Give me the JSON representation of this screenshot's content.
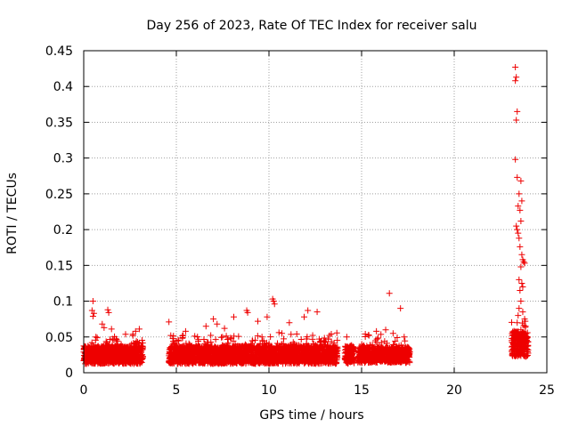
{
  "chart_data": {
    "type": "scatter",
    "title": "Day 256 of 2023, Rate Of TEC Index for receiver salu",
    "xlabel": "GPS time / hours",
    "ylabel": "ROTI / TECUs",
    "xlim": [
      0,
      25
    ],
    "ylim": [
      0,
      0.45
    ],
    "xticks": [
      "0",
      "5",
      "10",
      "15",
      "20",
      "25"
    ],
    "yticks": [
      "0",
      "0.05",
      "0.1",
      "0.15",
      "0.2",
      "0.25",
      "0.3",
      "0.35",
      "0.4",
      "0.45"
    ],
    "grid": true,
    "marker": "plus",
    "color": "#ee0000",
    "segments": [
      {
        "start": 0.0,
        "end": 3.2,
        "base": 0.025,
        "spread": 0.025
      },
      {
        "start": 4.6,
        "end": 13.7,
        "base": 0.025,
        "spread": 0.025
      },
      {
        "start": 14.1,
        "end": 14.6,
        "base": 0.025,
        "spread": 0.025
      },
      {
        "start": 14.8,
        "end": 17.6,
        "base": 0.025,
        "spread": 0.022
      },
      {
        "start": 23.1,
        "end": 24.0,
        "base": 0.04,
        "spread": 0.035
      }
    ],
    "points": [
      [
        0.5,
        0.1
      ],
      [
        0.45,
        0.087
      ],
      [
        0.55,
        0.083
      ],
      [
        0.5,
        0.079
      ],
      [
        1.0,
        0.068
      ],
      [
        1.1,
        0.063
      ],
      [
        1.3,
        0.088
      ],
      [
        1.35,
        0.084
      ],
      [
        1.5,
        0.061
      ],
      [
        2.8,
        0.058
      ],
      [
        3.0,
        0.061
      ],
      [
        4.6,
        0.071
      ],
      [
        4.7,
        0.052
      ],
      [
        5.5,
        0.058
      ],
      [
        6.6,
        0.065
      ],
      [
        7.0,
        0.075
      ],
      [
        7.2,
        0.068
      ],
      [
        7.6,
        0.062
      ],
      [
        8.1,
        0.078
      ],
      [
        8.8,
        0.087
      ],
      [
        8.85,
        0.084
      ],
      [
        9.4,
        0.072
      ],
      [
        9.9,
        0.078
      ],
      [
        10.2,
        0.103
      ],
      [
        10.25,
        0.1
      ],
      [
        10.3,
        0.096
      ],
      [
        10.7,
        0.055
      ],
      [
        11.1,
        0.07
      ],
      [
        11.5,
        0.054
      ],
      [
        11.9,
        0.078
      ],
      [
        12.1,
        0.087
      ],
      [
        12.6,
        0.085
      ],
      [
        13.2,
        0.047
      ],
      [
        14.2,
        0.05
      ],
      [
        15.2,
        0.054
      ],
      [
        15.8,
        0.058
      ],
      [
        16.3,
        0.06
      ],
      [
        16.5,
        0.111
      ],
      [
        16.7,
        0.055
      ],
      [
        17.1,
        0.09
      ],
      [
        17.3,
        0.05
      ],
      [
        23.3,
        0.427
      ],
      [
        23.35,
        0.413
      ],
      [
        23.3,
        0.408
      ],
      [
        23.4,
        0.365
      ],
      [
        23.35,
        0.353
      ],
      [
        23.3,
        0.298
      ],
      [
        23.4,
        0.273
      ],
      [
        23.6,
        0.268
      ],
      [
        23.5,
        0.25
      ],
      [
        23.65,
        0.24
      ],
      [
        23.45,
        0.233
      ],
      [
        23.55,
        0.227
      ],
      [
        23.6,
        0.212
      ],
      [
        23.35,
        0.205
      ],
      [
        23.4,
        0.2
      ],
      [
        23.45,
        0.195
      ],
      [
        23.5,
        0.188
      ],
      [
        23.55,
        0.176
      ],
      [
        23.65,
        0.165
      ],
      [
        23.7,
        0.158
      ],
      [
        23.75,
        0.155
      ],
      [
        23.8,
        0.153
      ],
      [
        23.6,
        0.148
      ],
      [
        23.5,
        0.13
      ],
      [
        23.65,
        0.125
      ],
      [
        23.7,
        0.12
      ],
      [
        23.55,
        0.115
      ],
      [
        23.6,
        0.1
      ],
      [
        23.5,
        0.09
      ],
      [
        23.7,
        0.085
      ],
      [
        23.45,
        0.08
      ],
      [
        23.8,
        0.075
      ],
      [
        23.4,
        0.07
      ],
      [
        23.85,
        0.065
      ],
      [
        23.6,
        0.06
      ]
    ]
  }
}
